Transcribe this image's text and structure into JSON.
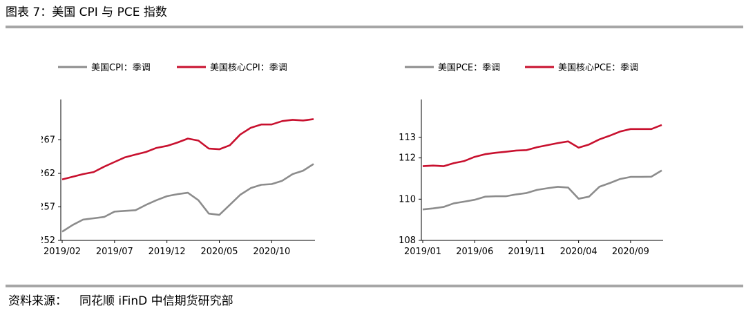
{
  "figure": {
    "title": "图表 7：美国 CPI 与 PCE 指数",
    "source_label": "资料来源：",
    "source_text": "同花顺 iFinD 中信期货研究部"
  },
  "chart_data": [
    {
      "type": "line",
      "title": "",
      "xlabel": "",
      "ylabel": "",
      "ylim": [
        252,
        272
      ],
      "yticks": [
        252,
        257,
        262,
        267
      ],
      "xtick_labels": [
        "2019/02",
        "2019/07",
        "2019/12",
        "2020/05",
        "2020/10"
      ],
      "xtick_index": [
        0,
        5,
        10,
        15,
        20
      ],
      "grid": false,
      "legend": "top",
      "series": [
        {
          "name": "美国CPI：季调",
          "color": "#8c8c8c",
          "values": [
            253.3,
            254.3,
            255.1,
            255.3,
            255.5,
            256.3,
            256.4,
            256.5,
            257.3,
            258.0,
            258.6,
            258.9,
            259.1,
            258.0,
            256.0,
            255.8,
            257.3,
            258.8,
            259.8,
            260.3,
            260.4,
            260.9,
            261.9,
            262.4,
            263.4
          ]
        },
        {
          "name": "美国核心CPI：季调",
          "color": "#c8102e",
          "values": [
            261.1,
            261.5,
            261.9,
            262.2,
            263.0,
            263.7,
            264.4,
            264.8,
            265.2,
            265.8,
            266.1,
            266.6,
            267.2,
            266.9,
            265.7,
            265.6,
            266.2,
            267.8,
            268.8,
            269.3,
            269.3,
            269.8,
            270.0,
            269.9,
            270.1
          ]
        }
      ]
    },
    {
      "type": "line",
      "title": "",
      "xlabel": "",
      "ylabel": "",
      "ylim": [
        108,
        114.5
      ],
      "yticks": [
        108,
        110,
        112,
        113
      ],
      "xtick_labels": [
        "2019/01",
        "2019/06",
        "2019/11",
        "2020/04",
        "2020/09"
      ],
      "xtick_index": [
        0,
        5,
        10,
        15,
        20
      ],
      "grid": false,
      "legend": "top",
      "series": [
        {
          "name": "美国PCE：季调",
          "color": "#8c8c8c",
          "values": [
            109.5,
            109.55,
            109.62,
            109.8,
            109.88,
            109.97,
            110.12,
            110.14,
            110.14,
            110.23,
            110.3,
            110.45,
            110.53,
            110.6,
            110.56,
            110.02,
            110.12,
            110.6,
            110.78,
            110.98,
            111.08,
            111.08,
            111.09,
            111.39
          ]
        },
        {
          "name": "美国核心PCE：季调",
          "color": "#c8102e",
          "values": [
            111.6,
            111.63,
            111.6,
            111.75,
            111.85,
            112.05,
            112.18,
            112.25,
            112.3,
            112.36,
            112.38,
            112.52,
            112.62,
            112.72,
            112.8,
            112.5,
            112.65,
            112.9,
            113.08,
            113.28,
            113.4,
            113.4,
            113.4,
            113.6
          ]
        }
      ]
    }
  ]
}
